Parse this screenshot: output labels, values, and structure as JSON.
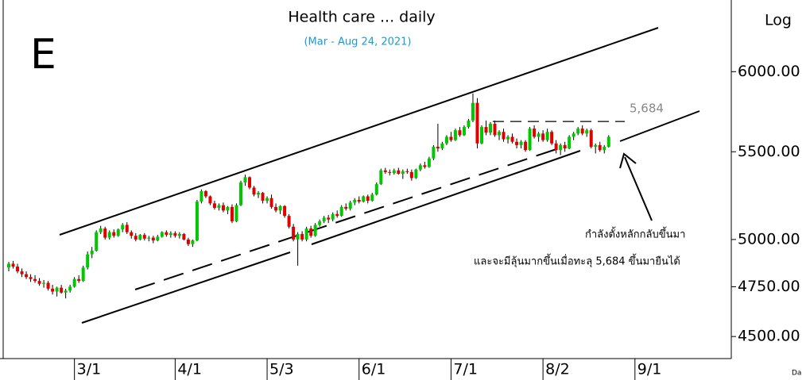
{
  "chart_data": {
    "type": "candlestick",
    "panel_letter": "E",
    "title": "Health care ... daily",
    "subtitle": "(Mar - Aug 24, 2021)",
    "scale_label": "Log",
    "log_scale": true,
    "corner_text": "Da",
    "up_color": "#00c800",
    "down_color": "#e00000",
    "ylim": [
      4420,
      6430
    ],
    "yticks": [
      {
        "value": 4500,
        "label": "4500.00"
      },
      {
        "value": 4750,
        "label": "4750.00"
      },
      {
        "value": 5000,
        "label": "5000.00"
      },
      {
        "value": 5500,
        "label": "5500.00"
      },
      {
        "value": 6000,
        "label": "6000.00"
      }
    ],
    "xlim": [
      -2,
      165
    ],
    "xticks": [
      {
        "value": 15,
        "label": "3/1"
      },
      {
        "value": 38,
        "label": "4/1"
      },
      {
        "value": 59,
        "label": "5/3"
      },
      {
        "value": 80,
        "label": "6/1"
      },
      {
        "value": 101,
        "label": "7/1"
      },
      {
        "value": 122,
        "label": "8/2"
      },
      {
        "value": 143,
        "label": "9/1"
      }
    ],
    "resistance": {
      "value": 5684,
      "label": "5,684"
    },
    "annotations": [
      "กำลังตั้งหลักกลับขึ้นมา",
      "และจะมีลุ้นมากขึ้นเมื่อทะลุ 5,684 ขึ้นมายืนได้"
    ],
    "ohlc": [
      [
        4850,
        4880,
        4830,
        4870
      ],
      [
        4870,
        4885,
        4845,
        4855
      ],
      [
        4855,
        4870,
        4820,
        4830
      ],
      [
        4830,
        4845,
        4800,
        4815
      ],
      [
        4815,
        4830,
        4790,
        4800
      ],
      [
        4800,
        4815,
        4775,
        4790
      ],
      [
        4790,
        4810,
        4770,
        4780
      ],
      [
        4780,
        4795,
        4755,
        4765
      ],
      [
        4765,
        4785,
        4745,
        4770
      ],
      [
        4770,
        4780,
        4730,
        4740
      ],
      [
        4740,
        4760,
        4710,
        4725
      ],
      [
        4725,
        4750,
        4700,
        4745
      ],
      [
        4745,
        4760,
        4715,
        4720
      ],
      [
        4720,
        4740,
        4690,
        4730
      ],
      [
        4730,
        4760,
        4720,
        4750
      ],
      [
        4750,
        4800,
        4745,
        4790
      ],
      [
        4790,
        4810,
        4770,
        4780
      ],
      [
        4780,
        4860,
        4775,
        4850
      ],
      [
        4850,
        4935,
        4840,
        4920
      ],
      [
        4920,
        4960,
        4900,
        4940
      ],
      [
        4940,
        5050,
        4935,
        5040
      ],
      [
        5040,
        5075,
        5030,
        5060
      ],
      [
        5060,
        5070,
        5000,
        5010
      ],
      [
        5010,
        5050,
        5000,
        5040
      ],
      [
        5040,
        5055,
        5010,
        5020
      ],
      [
        5020,
        5060,
        5015,
        5055
      ],
      [
        5055,
        5090,
        5040,
        5080
      ],
      [
        5080,
        5095,
        5030,
        5040
      ],
      [
        5040,
        5050,
        5005,
        5020
      ],
      [
        5020,
        5035,
        4990,
        5000
      ],
      [
        5000,
        5030,
        4995,
        5025
      ],
      [
        5025,
        5035,
        4995,
        5005
      ],
      [
        5005,
        5020,
        4990,
        5010
      ],
      [
        5010,
        5020,
        4980,
        4995
      ],
      [
        4995,
        5025,
        4990,
        5015
      ],
      [
        5015,
        5045,
        5010,
        5040
      ],
      [
        5040,
        5050,
        5015,
        5025
      ],
      [
        5025,
        5045,
        5010,
        5035
      ],
      [
        5035,
        5045,
        5010,
        5020
      ],
      [
        5020,
        5040,
        5005,
        5030
      ],
      [
        5030,
        5035,
        4995,
        5000
      ],
      [
        5000,
        5010,
        4965,
        4975
      ],
      [
        4975,
        5000,
        4960,
        4995
      ],
      [
        4995,
        5220,
        4990,
        5210
      ],
      [
        5210,
        5280,
        5200,
        5270
      ],
      [
        5270,
        5275,
        5230,
        5240
      ],
      [
        5240,
        5245,
        5190,
        5200
      ],
      [
        5200,
        5215,
        5165,
        5175
      ],
      [
        5175,
        5200,
        5160,
        5190
      ],
      [
        5190,
        5205,
        5150,
        5160
      ],
      [
        5160,
        5185,
        5140,
        5180
      ],
      [
        5180,
        5195,
        5090,
        5100
      ],
      [
        5100,
        5200,
        5095,
        5190
      ],
      [
        5190,
        5330,
        5185,
        5320
      ],
      [
        5320,
        5365,
        5300,
        5350
      ],
      [
        5350,
        5355,
        5280,
        5290
      ],
      [
        5290,
        5300,
        5240,
        5250
      ],
      [
        5250,
        5270,
        5230,
        5260
      ],
      [
        5260,
        5265,
        5200,
        5215
      ],
      [
        5215,
        5240,
        5200,
        5230
      ],
      [
        5230,
        5250,
        5170,
        5180
      ],
      [
        5180,
        5200,
        5150,
        5160
      ],
      [
        5160,
        5190,
        5140,
        5185
      ],
      [
        5185,
        5190,
        5120,
        5130
      ],
      [
        5130,
        5140,
        5060,
        5070
      ],
      [
        5070,
        5085,
        4990,
        5000
      ],
      [
        5000,
        5040,
        4860,
        5030
      ],
      [
        5030,
        5045,
        4990,
        5000
      ],
      [
        5000,
        5070,
        4990,
        5060
      ],
      [
        5060,
        5075,
        5010,
        5020
      ],
      [
        5020,
        5090,
        5015,
        5080
      ],
      [
        5080,
        5110,
        5070,
        5100
      ],
      [
        5100,
        5130,
        5090,
        5120
      ],
      [
        5120,
        5135,
        5090,
        5110
      ],
      [
        5110,
        5150,
        5100,
        5140
      ],
      [
        5140,
        5160,
        5120,
        5130
      ],
      [
        5130,
        5190,
        5125,
        5180
      ],
      [
        5180,
        5200,
        5160,
        5170
      ],
      [
        5170,
        5215,
        5160,
        5205
      ],
      [
        5205,
        5230,
        5190,
        5220
      ],
      [
        5220,
        5240,
        5200,
        5210
      ],
      [
        5210,
        5245,
        5205,
        5240
      ],
      [
        5240,
        5250,
        5200,
        5215
      ],
      [
        5215,
        5260,
        5210,
        5250
      ],
      [
        5250,
        5320,
        5245,
        5310
      ],
      [
        5310,
        5400,
        5305,
        5390
      ],
      [
        5390,
        5405,
        5370,
        5380
      ],
      [
        5380,
        5395,
        5360,
        5375
      ],
      [
        5375,
        5400,
        5365,
        5390
      ],
      [
        5390,
        5405,
        5365,
        5370
      ],
      [
        5370,
        5395,
        5340,
        5385
      ],
      [
        5385,
        5400,
        5370,
        5380
      ],
      [
        5380,
        5395,
        5330,
        5345
      ],
      [
        5345,
        5400,
        5340,
        5395
      ],
      [
        5395,
        5430,
        5385,
        5420
      ],
      [
        5420,
        5440,
        5400,
        5410
      ],
      [
        5410,
        5470,
        5405,
        5460
      ],
      [
        5460,
        5540,
        5450,
        5530
      ],
      [
        5530,
        5670,
        5500,
        5520
      ],
      [
        5520,
        5560,
        5510,
        5550
      ],
      [
        5550,
        5600,
        5540,
        5590
      ],
      [
        5590,
        5620,
        5560,
        5570
      ],
      [
        5570,
        5640,
        5565,
        5630
      ],
      [
        5630,
        5650,
        5590,
        5600
      ],
      [
        5600,
        5660,
        5595,
        5650
      ],
      [
        5650,
        5700,
        5640,
        5690
      ],
      [
        5690,
        5860,
        5680,
        5800
      ],
      [
        5800,
        5830,
        5520,
        5550
      ],
      [
        5550,
        5660,
        5545,
        5650
      ],
      [
        5650,
        5690,
        5600,
        5615
      ],
      [
        5615,
        5680,
        5600,
        5670
      ],
      [
        5670,
        5690,
        5590,
        5600
      ],
      [
        5600,
        5630,
        5570,
        5620
      ],
      [
        5620,
        5640,
        5560,
        5575
      ],
      [
        5575,
        5600,
        5550,
        5590
      ],
      [
        5590,
        5610,
        5550,
        5560
      ],
      [
        5560,
        5580,
        5520,
        5540
      ],
      [
        5540,
        5570,
        5520,
        5560
      ],
      [
        5560,
        5570,
        5500,
        5510
      ],
      [
        5510,
        5650,
        5505,
        5640
      ],
      [
        5640,
        5660,
        5580,
        5590
      ],
      [
        5590,
        5620,
        5560,
        5610
      ],
      [
        5610,
        5630,
        5560,
        5570
      ],
      [
        5570,
        5640,
        5560,
        5620
      ],
      [
        5620,
        5630,
        5540,
        5550
      ],
      [
        5550,
        5570,
        5490,
        5510
      ],
      [
        5510,
        5550,
        5480,
        5540
      ],
      [
        5540,
        5560,
        5500,
        5520
      ],
      [
        5520,
        5600,
        5515,
        5590
      ],
      [
        5590,
        5620,
        5570,
        5610
      ],
      [
        5610,
        5650,
        5600,
        5640
      ],
      [
        5640,
        5660,
        5600,
        5610
      ],
      [
        5610,
        5640,
        5590,
        5630
      ],
      [
        5630,
        5640,
        5520,
        5530
      ],
      [
        5530,
        5550,
        5490,
        5540
      ],
      [
        5540,
        5560,
        5500,
        5510
      ],
      [
        5510,
        5540,
        5490,
        5530
      ],
      [
        5530,
        5600,
        5525,
        5590
      ]
    ]
  }
}
